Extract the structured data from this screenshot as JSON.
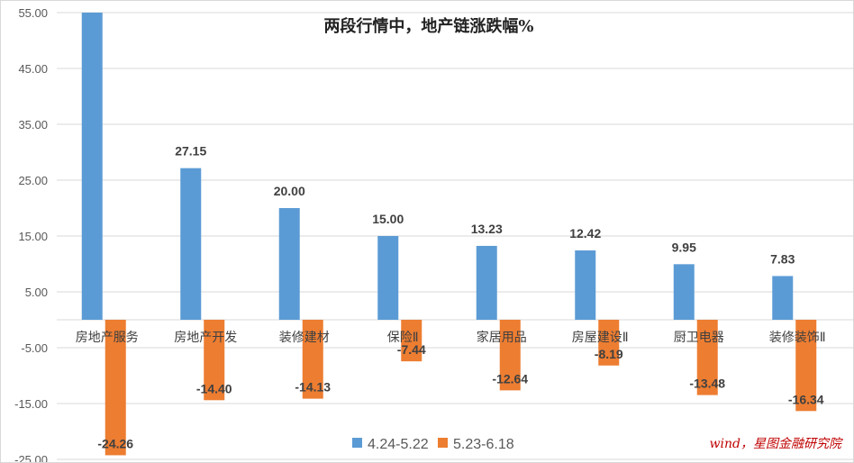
{
  "chart_data": {
    "type": "bar",
    "title": "两段行情中，地产链涨跌幅%",
    "categories": [
      "房地产服务",
      "房地产开发",
      "装修建材",
      "保险Ⅱ",
      "家居用品",
      "房屋建设Ⅱ",
      "厨卫电器",
      "装修装饰Ⅱ"
    ],
    "series": [
      {
        "name": "4.24-5.22",
        "color": "#5b9bd5",
        "values": [
          55,
          27.15,
          20.0,
          15.0,
          13.23,
          12.42,
          9.95,
          7.83
        ],
        "labels": [
          "",
          "27.15",
          "20.00",
          "15.00",
          "13.23",
          "12.42",
          "9.95",
          "7.83"
        ]
      },
      {
        "name": "5.23-6.18",
        "color": "#ed7d31",
        "values": [
          -24.26,
          -14.4,
          -14.13,
          -7.44,
          -12.64,
          -8.19,
          -13.48,
          -16.34
        ],
        "labels": [
          "-24.26",
          "-14.40",
          "-14.13",
          "-7.44",
          "-12.64",
          "-8.19",
          "-13.48",
          "-16.34"
        ]
      }
    ],
    "ylim": [
      -25,
      55
    ],
    "yticks": [
      "55.00",
      "45.00",
      "35.00",
      "25.00",
      "15.00",
      "5.00",
      "-5.00",
      "-15.00",
      "-25.00"
    ],
    "ytick_values": [
      55,
      45,
      35,
      25,
      15,
      5,
      -5,
      -15,
      -25
    ],
    "grid": true,
    "legend": "bottom",
    "source": "wind，星图金融研究院"
  }
}
